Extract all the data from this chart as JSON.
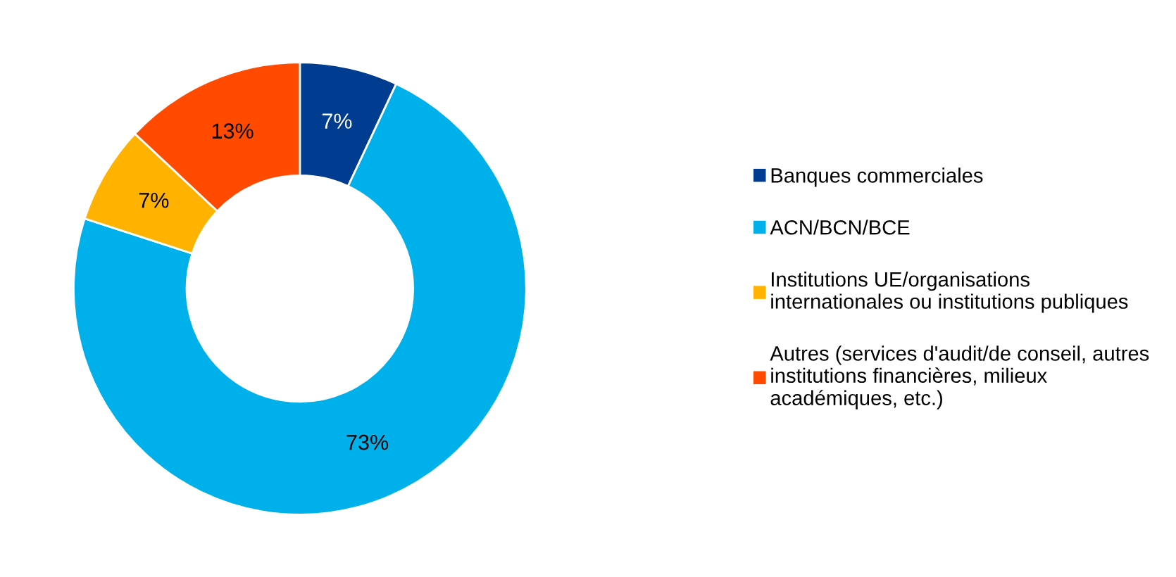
{
  "chart_data": {
    "type": "donut",
    "categories": [
      "Banques commerciales",
      "ACN/BCN/BCE",
      "Institutions UE/organisations\ninternationales ou institutions publiques",
      "Autres (services d'audit/de conseil, autres\ninstitutions financières, milieux\nacadémiques, etc.)"
    ],
    "values": [
      7,
      73,
      7,
      13
    ],
    "value_labels": [
      "7%",
      "73%",
      "7%",
      "13%"
    ],
    "colors": [
      "#003c8f",
      "#00b0ea",
      "#ffb300",
      "#ff4a00"
    ],
    "legend": "right"
  }
}
